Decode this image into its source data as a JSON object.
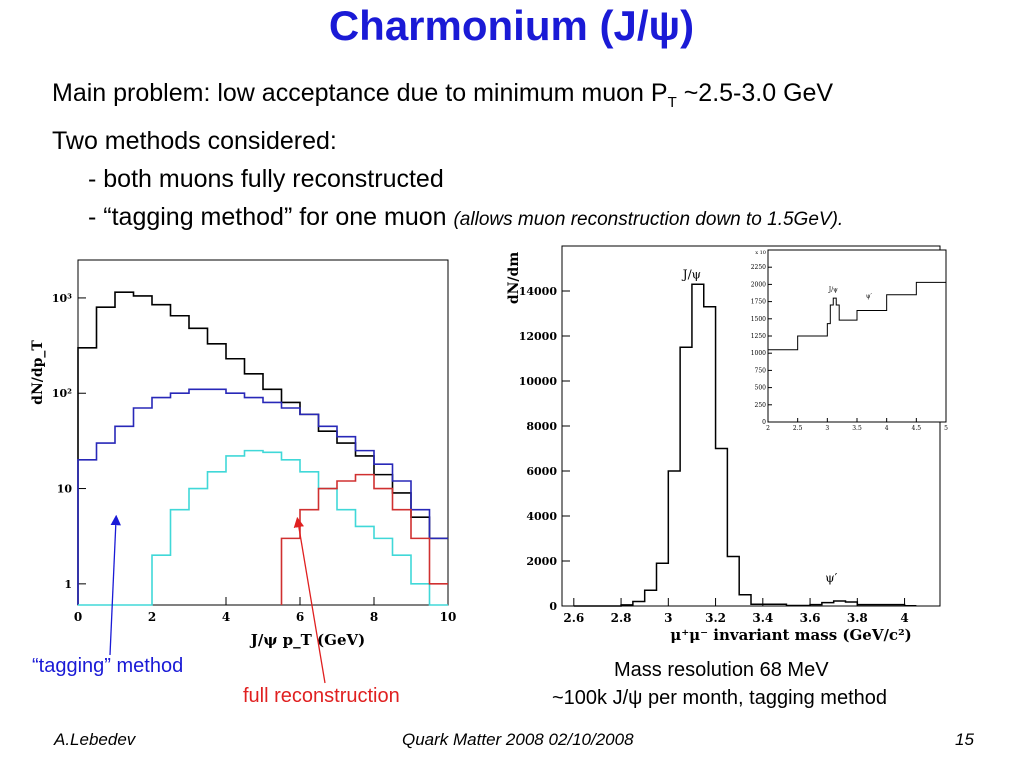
{
  "slide": {
    "title": "Charmonium (J/ψ)",
    "bullets": {
      "line1_pre": "Main problem: low acceptance due to minimum muon P",
      "line1_sub": "T",
      "line1_post": " ~2.5-3.0 GeV",
      "line2": "Two methods considered:",
      "line3": "- both muons fully reconstructed",
      "line4_main": "- “tagging method” for one muon ",
      "line4_note": "(allows muon reconstruction down to 1.5GeV)."
    },
    "annotations": {
      "tagging": "“tagging” method",
      "full": "full reconstruction",
      "resolution": "Mass resolution 68 MeV",
      "rate": "~100k J/ψ per month, tagging method"
    },
    "footer": {
      "author": "A.Lebedev",
      "conference": "Quark Matter 2008   02/10/2008",
      "page": "15"
    },
    "colors": {
      "title": "#1a1ad6",
      "tagging": "#1a1ad6",
      "full": "#e02020",
      "black": "#000000",
      "blue": "#2828b8",
      "cyan": "#40d8d8",
      "red": "#d03030"
    }
  },
  "chart_data": [
    {
      "type": "line",
      "step": true,
      "log_y": true,
      "xlabel": "J/ψ p_T (GeV)",
      "ylabel": "dN/dp_T",
      "xlim": [
        0,
        10
      ],
      "x_ticks": [
        "0",
        "2",
        "4",
        "6",
        "8",
        "10"
      ],
      "y_ticks": [
        "1",
        "10",
        "10²",
        "10³"
      ],
      "series": [
        {
          "color": "black",
          "x": [
            0.25,
            0.75,
            1.25,
            1.75,
            2.25,
            2.75,
            3.25,
            3.75,
            4.25,
            4.75,
            5.25,
            5.75,
            6.25,
            6.75,
            7.25,
            7.75,
            8.25,
            8.75,
            9.25,
            9.75
          ],
          "values": [
            300,
            800,
            1150,
            1050,
            850,
            650,
            480,
            330,
            230,
            160,
            110,
            80,
            60,
            40,
            30,
            22,
            14,
            9,
            5,
            3
          ]
        },
        {
          "color": "blue",
          "x": [
            0.25,
            0.75,
            1.25,
            1.75,
            2.25,
            2.75,
            3.25,
            3.75,
            4.25,
            4.75,
            5.25,
            5.75,
            6.25,
            6.75,
            7.25,
            7.75,
            8.25,
            8.75,
            9.25,
            9.75
          ],
          "values": [
            20,
            30,
            45,
            70,
            90,
            100,
            110,
            110,
            100,
            90,
            80,
            70,
            60,
            45,
            35,
            25,
            18,
            12,
            6,
            3
          ]
        },
        {
          "color": "cyan",
          "x": [
            0.25,
            0.75,
            1.25,
            1.75,
            2.25,
            2.75,
            3.25,
            3.75,
            4.25,
            4.75,
            5.25,
            5.75,
            6.25,
            6.75,
            7.25,
            7.75,
            8.25,
            8.75,
            9.25,
            9.75
          ],
          "values": [
            0,
            0,
            0,
            0,
            2,
            6,
            10,
            15,
            22,
            25,
            24,
            20,
            15,
            10,
            6,
            4,
            3,
            2,
            1,
            0
          ]
        },
        {
          "color": "red",
          "x": [
            5.75,
            6.25,
            6.75,
            7.25,
            7.75,
            8.25,
            8.75,
            9.25,
            9.75
          ],
          "values": [
            3,
            6,
            10,
            12,
            14,
            10,
            6,
            3,
            1
          ]
        }
      ]
    },
    {
      "type": "line",
      "step": true,
      "xlabel": "μ⁺μ⁻ invariant mass (GeV/c²)",
      "ylabel": "dN/dm",
      "xlim": [
        2.55,
        4.15
      ],
      "ylim": [
        0,
        16000
      ],
      "x_ticks": [
        "2.6",
        "2.8",
        "3",
        "3.2",
        "3.4",
        "3.6",
        "3.8",
        "4"
      ],
      "y_ticks": [
        "0",
        "2000",
        "4000",
        "6000",
        "8000",
        "10000",
        "12000",
        "14000"
      ],
      "peak_labels": [
        "J/ψ",
        "ψ′"
      ],
      "series": [
        {
          "x": [
            2.6,
            2.8,
            2.85,
            2.9,
            2.95,
            3.0,
            3.05,
            3.1,
            3.15,
            3.2,
            3.25,
            3.3,
            3.35,
            3.5,
            3.6,
            3.65,
            3.7,
            3.75,
            3.8,
            4.0
          ],
          "values": [
            0,
            50,
            200,
            700,
            1900,
            6000,
            11500,
            14300,
            13300,
            7000,
            2200,
            500,
            80,
            20,
            60,
            150,
            220,
            180,
            60,
            10
          ]
        }
      ]
    },
    {
      "type": "line",
      "step": true,
      "inset": true,
      "xlim": [
        2,
        5
      ],
      "ylim": [
        0,
        2500
      ],
      "x_ticks": [
        "2",
        "2.5",
        "3",
        "3.5",
        "4",
        "4.5",
        "5"
      ],
      "y_ticks": [
        "0",
        "250",
        "500",
        "750",
        "1000",
        "1250",
        "1500",
        "1750",
        "2000",
        "2250"
      ],
      "y_multiplier": "x 10",
      "peak_labels": [
        "J/ψ",
        "ψ′"
      ],
      "series": [
        {
          "x": [
            2.0,
            2.5,
            3.0,
            3.05,
            3.1,
            3.15,
            3.2,
            3.5,
            4.0,
            4.5,
            5.0
          ],
          "values": [
            1050,
            1250,
            1430,
            1700,
            1800,
            1700,
            1480,
            1620,
            1850,
            2030,
            2200
          ]
        }
      ]
    }
  ]
}
